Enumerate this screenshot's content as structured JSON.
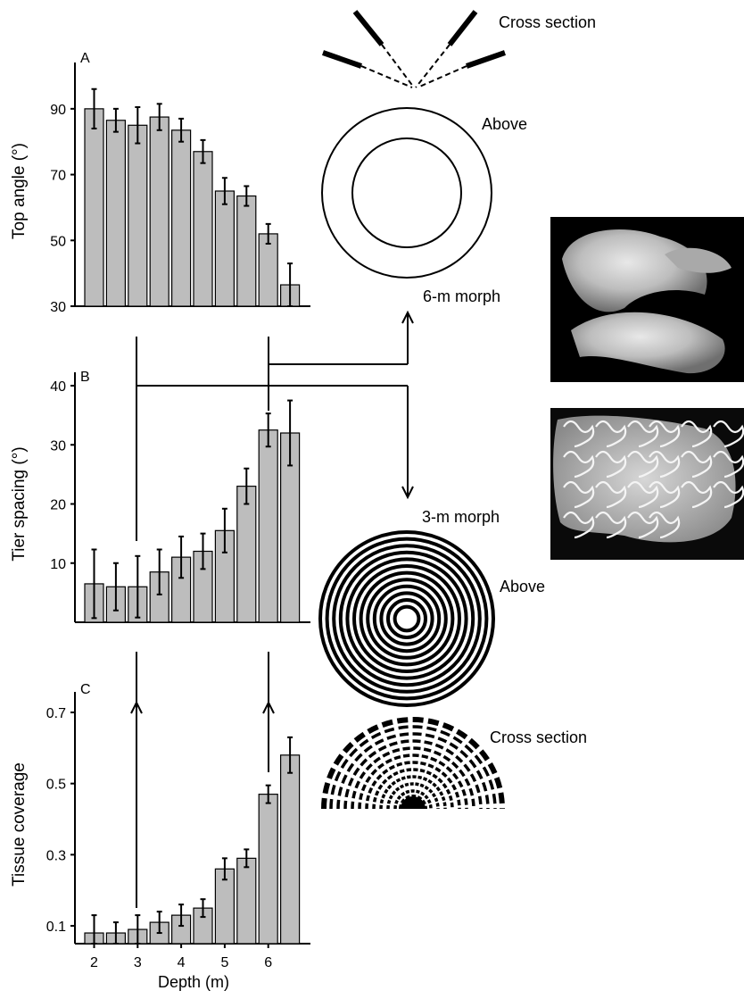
{
  "shared": {
    "xlabel": "Depth (m)",
    "x_ticks": [
      "2",
      "3",
      "4",
      "5",
      "6"
    ]
  },
  "chart_data": [
    {
      "panel": "A",
      "type": "bar",
      "ylabel": "Top angle (°)",
      "ylim": [
        30,
        100
      ],
      "yticks": [
        30,
        50,
        70,
        90
      ],
      "values": [
        90,
        86.5,
        85,
        87.5,
        83.5,
        77,
        65,
        63.5,
        52,
        36.5
      ],
      "errors": [
        6,
        3.5,
        5.5,
        4,
        3.5,
        3.5,
        4,
        3,
        3,
        6.5
      ],
      "bar_color": "#bdbdbd"
    },
    {
      "panel": "B",
      "type": "bar",
      "ylabel": "Tier spacing (°)",
      "ylim": [
        0,
        40
      ],
      "yticks": [
        10,
        20,
        30,
        40
      ],
      "values": [
        6.5,
        6,
        6,
        8.5,
        11,
        12,
        15.5,
        23,
        32.5,
        32
      ],
      "errors": [
        5.8,
        4,
        5.2,
        3.8,
        3.5,
        3,
        3.7,
        3,
        2.8,
        5.5
      ],
      "bar_color": "#bdbdbd"
    },
    {
      "panel": "C",
      "type": "bar",
      "ylabel": "Tissue coverage",
      "ylim": [
        0.05,
        0.72
      ],
      "yticks": [
        0.1,
        0.3,
        0.5,
        0.7
      ],
      "values": [
        0.08,
        0.08,
        0.09,
        0.11,
        0.13,
        0.15,
        0.26,
        0.29,
        0.47,
        0.58
      ],
      "errors": [
        0.05,
        0.03,
        0.04,
        0.03,
        0.03,
        0.025,
        0.03,
        0.025,
        0.025,
        0.05
      ],
      "bar_color": "#bdbdbd"
    }
  ],
  "diagram": {
    "top_cross_section_label": "Cross section",
    "top_above_label": "Above",
    "morph_6m_label": "6-m morph",
    "morph_3m_label": "3-m morph",
    "bottom_above_label": "Above",
    "bottom_cross_section_label": "Cross section"
  }
}
